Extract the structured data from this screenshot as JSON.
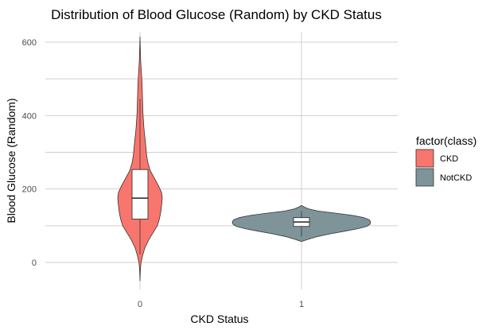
{
  "chart_data": {
    "type": "violin",
    "title": "Distribution of Blood Glucose (Random) by CKD Status",
    "xlabel": "CKD Status",
    "ylabel": "Blood Glucose (Random)",
    "categories": [
      "0",
      "1"
    ],
    "yticks": [
      0,
      200,
      400,
      600
    ],
    "ylim": [
      -75,
      640
    ],
    "grid": true,
    "legend": {
      "title": "factor(class)",
      "placement": "right",
      "entries": [
        {
          "label": "CKD",
          "color": "#F8766D"
        },
        {
          "label": "NotCKD",
          "color": "#7F9499"
        }
      ]
    },
    "series": [
      {
        "category": "0",
        "color": "#F8766D",
        "range": [
          -50,
          615
        ],
        "box": {
          "q1": 118,
          "median": 175,
          "q3": 253,
          "whisker_low": 22,
          "whisker_high": 445
        },
        "density": [
          [
            -50,
            0.0
          ],
          [
            -30,
            0.01
          ],
          [
            -10,
            0.03
          ],
          [
            0,
            0.05
          ],
          [
            20,
            0.12
          ],
          [
            40,
            0.22
          ],
          [
            60,
            0.38
          ],
          [
            80,
            0.58
          ],
          [
            100,
            0.78
          ],
          [
            120,
            0.88
          ],
          [
            140,
            0.94
          ],
          [
            160,
            0.98
          ],
          [
            175,
            1.0
          ],
          [
            190,
            0.97
          ],
          [
            210,
            0.82
          ],
          [
            230,
            0.64
          ],
          [
            250,
            0.46
          ],
          [
            270,
            0.36
          ],
          [
            290,
            0.3
          ],
          [
            310,
            0.27
          ],
          [
            330,
            0.24
          ],
          [
            350,
            0.2
          ],
          [
            370,
            0.17
          ],
          [
            390,
            0.15
          ],
          [
            410,
            0.13
          ],
          [
            430,
            0.12
          ],
          [
            450,
            0.11
          ],
          [
            470,
            0.1
          ],
          [
            490,
            0.09
          ],
          [
            510,
            0.07
          ],
          [
            530,
            0.05
          ],
          [
            550,
            0.03
          ],
          [
            570,
            0.02
          ],
          [
            590,
            0.01
          ],
          [
            615,
            0.0
          ]
        ]
      },
      {
        "category": "1",
        "color": "#7F9499",
        "range": [
          57,
          155
        ],
        "box": {
          "q1": 98,
          "median": 110,
          "q3": 122,
          "whisker_low": 70,
          "whisker_high": 140
        },
        "density": [
          [
            57,
            0.0
          ],
          [
            62,
            0.08
          ],
          [
            70,
            0.22
          ],
          [
            78,
            0.42
          ],
          [
            85,
            0.62
          ],
          [
            92,
            0.82
          ],
          [
            98,
            0.94
          ],
          [
            104,
            0.99
          ],
          [
            110,
            1.0
          ],
          [
            116,
            0.98
          ],
          [
            122,
            0.9
          ],
          [
            128,
            0.74
          ],
          [
            134,
            0.5
          ],
          [
            140,
            0.24
          ],
          [
            146,
            0.1
          ],
          [
            150,
            0.05
          ],
          [
            155,
            0.0
          ]
        ]
      }
    ]
  }
}
